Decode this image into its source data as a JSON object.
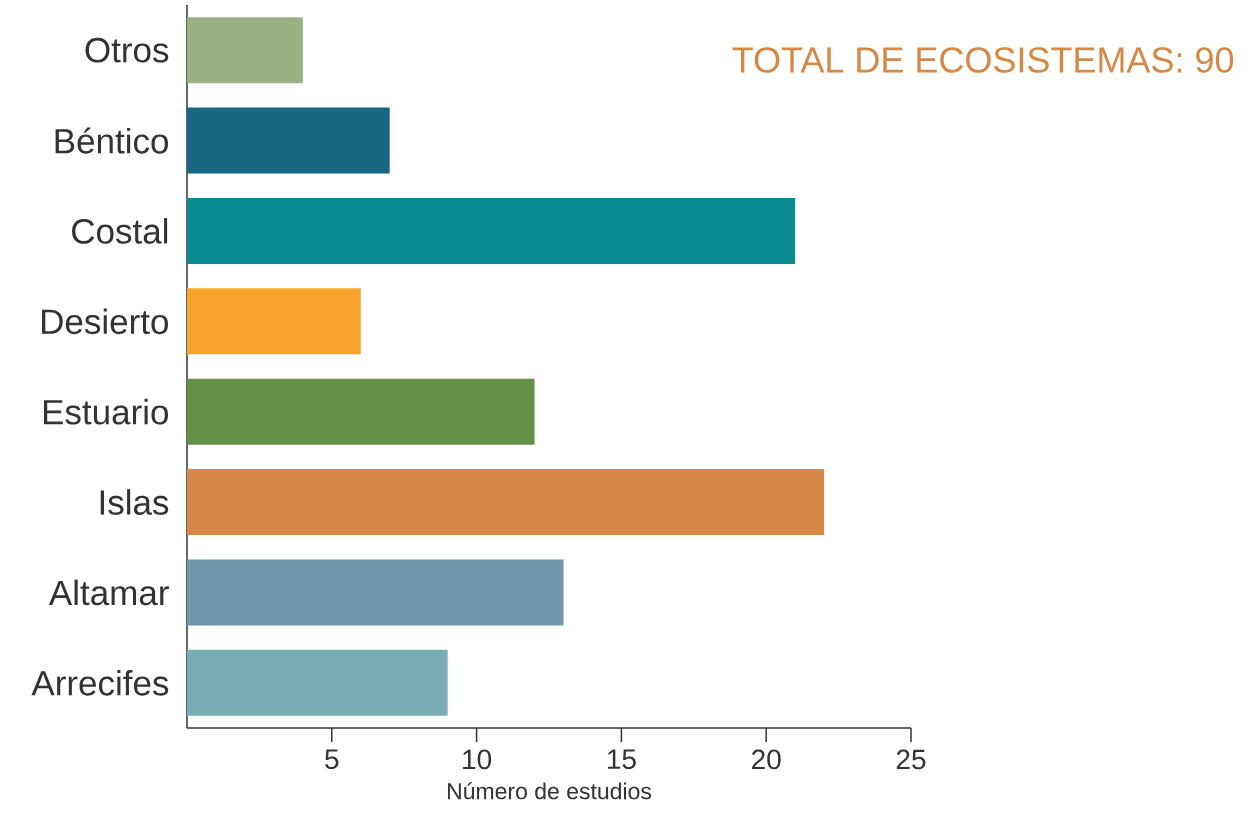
{
  "chart_data": {
    "type": "bar",
    "orientation": "horizontal",
    "xlabel": "Número de estudios",
    "categories": [
      "Otros",
      "Béntico",
      "Costal",
      "Desierto",
      "Estuario",
      "Islas",
      "Altamar",
      "Arrecifes"
    ],
    "values": [
      4,
      7,
      21,
      6,
      12,
      22,
      13,
      9
    ],
    "colors": [
      "#9db083",
      "#156782",
      "#0a8b8f",
      "#f6a42c",
      "#648f47",
      "#d68946",
      "#7195aa",
      "#78adb6"
    ],
    "xlim": [
      0,
      25
    ],
    "xticks": [
      5,
      10,
      15,
      20,
      25
    ],
    "annotations": [
      "TOTAL DE ECOSISTEMAS: 90"
    ]
  }
}
